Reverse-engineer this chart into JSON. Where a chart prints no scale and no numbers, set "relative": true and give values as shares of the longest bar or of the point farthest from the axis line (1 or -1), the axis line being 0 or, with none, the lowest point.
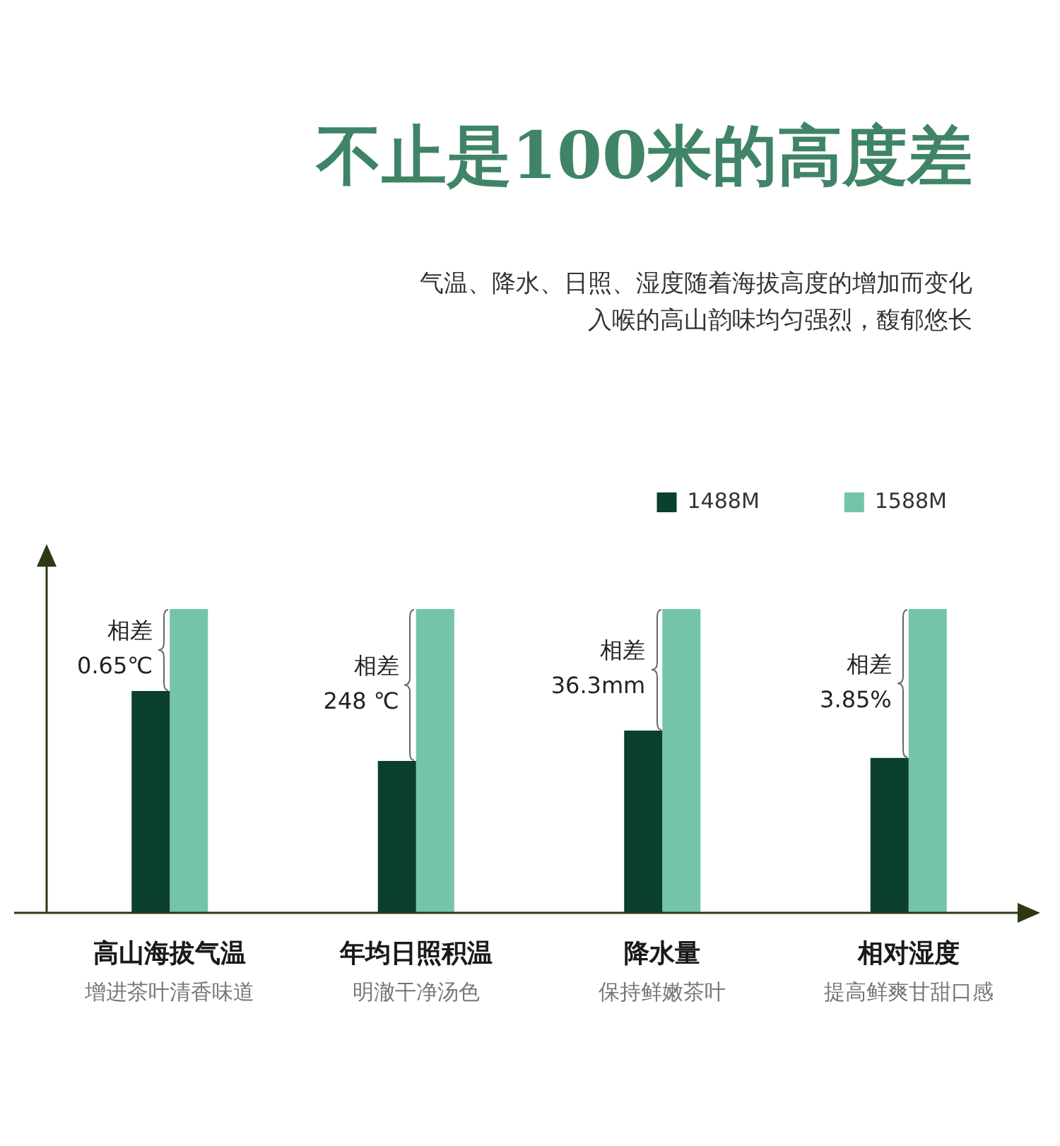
{
  "chart_data": {
    "type": "bar",
    "title": "不止是100米的高度差",
    "subtitle": "气温、降水、日照、湿度随着海拔高度的增加而变化",
    "categories": [
      "高山海拔气温",
      "年均日照积温",
      "降水量",
      "相对湿度"
    ],
    "series": [
      {
        "name": "1488M",
        "color": "#0b3f2e",
        "values": [
          0.73,
          0.5,
          0.6,
          0.51
        ]
      },
      {
        "name": "1588M",
        "color": "#74c4ab",
        "values": [
          1,
          1,
          1,
          1
        ]
      }
    ],
    "relative": true,
    "legend": "top right",
    "annotations": [
      "相差\n0.65℃",
      "相差\n248 ℃",
      "相差\n36.3mm",
      "相差\n3.85%",
      "增进茶叶清香味道",
      "明澈干净汤色",
      "保持鲜嫩茶叶",
      "提高鲜爽甘甜口感",
      "入喉的高山韵味均匀强烈，馥郁悠长"
    ]
  }
}
